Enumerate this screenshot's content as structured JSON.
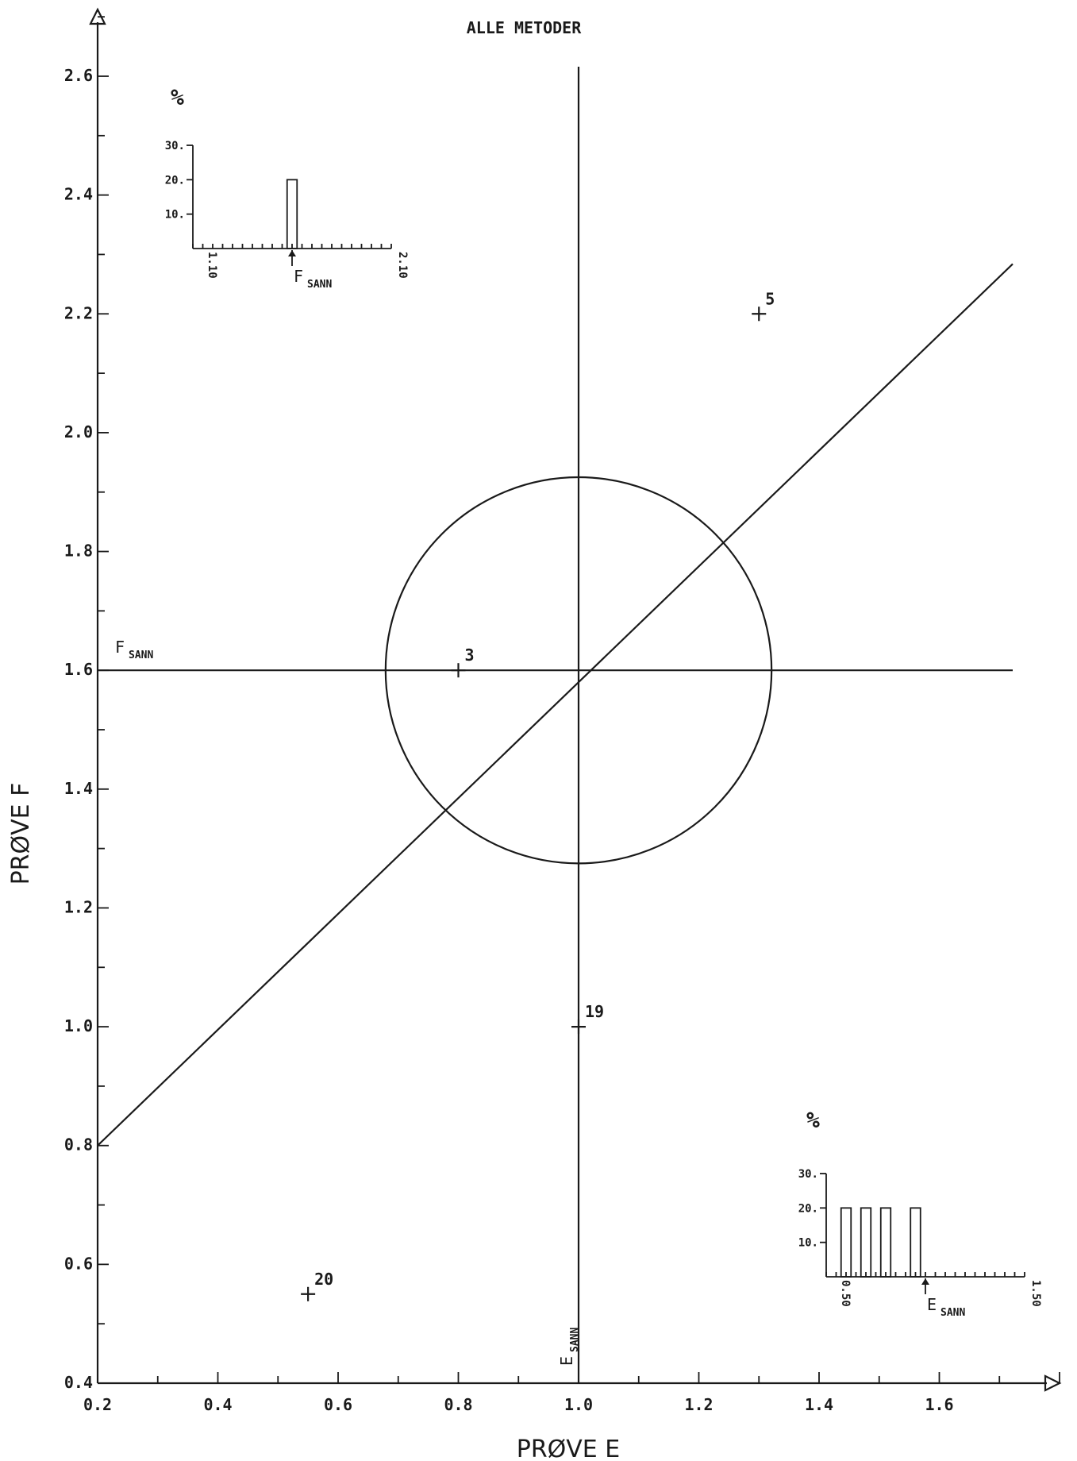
{
  "subtitle": "ALLE METODER",
  "chart_data": {
    "type": "scatter",
    "xlabel": "PRØVE E",
    "ylabel": "PRØVE F",
    "xlim": [
      0.2,
      2.0
    ],
    "ylim": [
      0.4,
      2.7
    ],
    "x_ticks": [
      "0.2",
      "0.4",
      "0.6",
      "0.8",
      "1.0",
      "1.2",
      "1.4",
      "1.6"
    ],
    "y_ticks": [
      "0.4",
      "0.6",
      "0.8",
      "1.0",
      "1.2",
      "1.4",
      "1.6",
      "1.8",
      "2.0",
      "2.2",
      "2.4",
      "2.6"
    ],
    "true_values": {
      "E": 1.0,
      "F": 1.6
    },
    "true_value_labels": {
      "E": {
        "main": "E",
        "sub": "SANN"
      },
      "F": {
        "main": "F",
        "sub": "SANN"
      }
    },
    "diagonal": [
      [
        0.2,
        0.8
      ],
      [
        1.9,
        2.3
      ]
    ],
    "circle": {
      "center": [
        1.0,
        1.6
      ],
      "radius_y": 0.325
    },
    "points": [
      {
        "label": "3",
        "x": 0.8,
        "y": 1.6
      },
      {
        "label": "5",
        "x": 1.3,
        "y": 2.2
      },
      {
        "label": "19",
        "x": 1.0,
        "y": 1.0
      },
      {
        "label": "20",
        "x": 0.55,
        "y": 0.55
      }
    ],
    "histograms": [
      {
        "name": "F",
        "ylabel": "%",
        "y_ticks": [
          "10.",
          "20.",
          "30."
        ],
        "x_range_labels": [
          "1.10",
          "2.10"
        ],
        "true_label": {
          "main": "F",
          "sub": "SANN"
        },
        "bars": [
          {
            "x": 1.6,
            "value": 20
          }
        ]
      },
      {
        "name": "E",
        "ylabel": "%",
        "y_ticks": [
          "10.",
          "20.",
          "30."
        ],
        "x_range_labels": [
          "0.50",
          "1.50"
        ],
        "true_label": {
          "main": "E",
          "sub": "SANN"
        },
        "bars": [
          {
            "x": 0.6,
            "value": 20
          },
          {
            "x": 0.7,
            "value": 20
          },
          {
            "x": 0.8,
            "value": 20
          },
          {
            "x": 0.95,
            "value": 20
          }
        ]
      }
    ]
  }
}
